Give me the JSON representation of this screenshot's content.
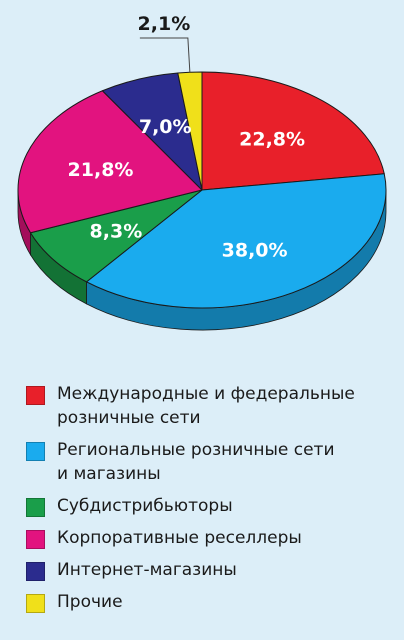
{
  "chart_data": {
    "type": "pie",
    "categories": [
      "Международные и федеральные\nрозничные сети",
      "Региональные розничные сети\nи магазины",
      "Субдистрибьюторы",
      "Корпоративные реселлеры",
      "Интернет-магазины",
      "Прочие"
    ],
    "values": [
      22.8,
      38.0,
      8.3,
      21.8,
      7.0,
      2.1
    ],
    "value_labels": [
      "22,8%",
      "38,0%",
      "8,3%",
      "21,8%",
      "7,0%",
      "2,1%"
    ],
    "colors": [
      "#e8202a",
      "#1aabee",
      "#1a9e4a",
      "#e2137f",
      "#2b2c8e",
      "#f0e01a"
    ],
    "title": "",
    "legend_position": "bottom"
  }
}
